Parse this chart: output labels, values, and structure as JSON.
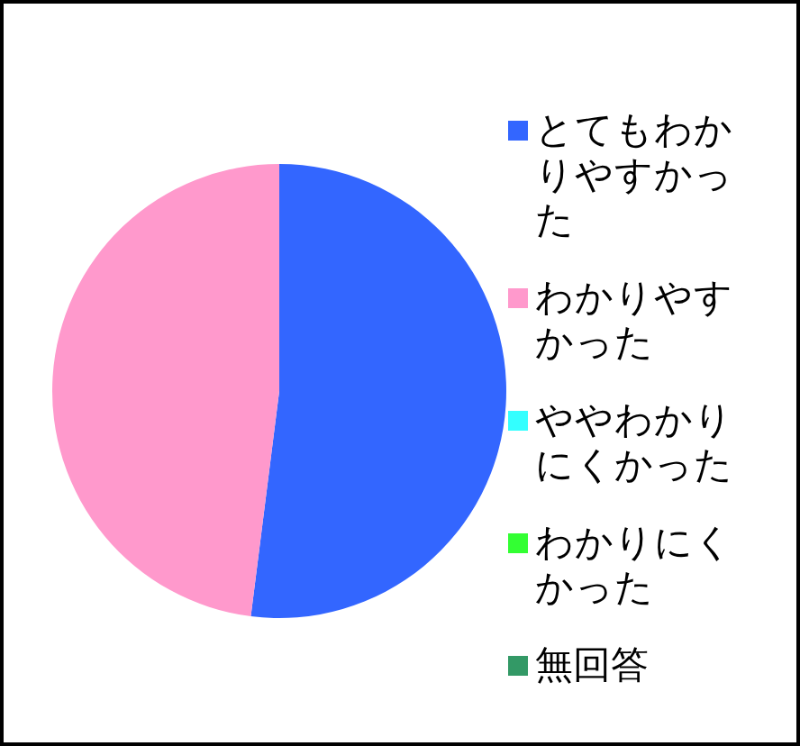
{
  "chart_data": {
    "type": "pie",
    "categories": [
      "とてもわかりやすかった",
      "わかりやすかった",
      "ややわかりにくかった",
      "わかりにくかった",
      "無回答"
    ],
    "values": [
      52,
      48,
      0,
      0,
      0
    ],
    "colors": [
      "#3366ff",
      "#ff99cc",
      "#33ffff",
      "#33ff33",
      "#339966"
    ],
    "legend": "right"
  }
}
